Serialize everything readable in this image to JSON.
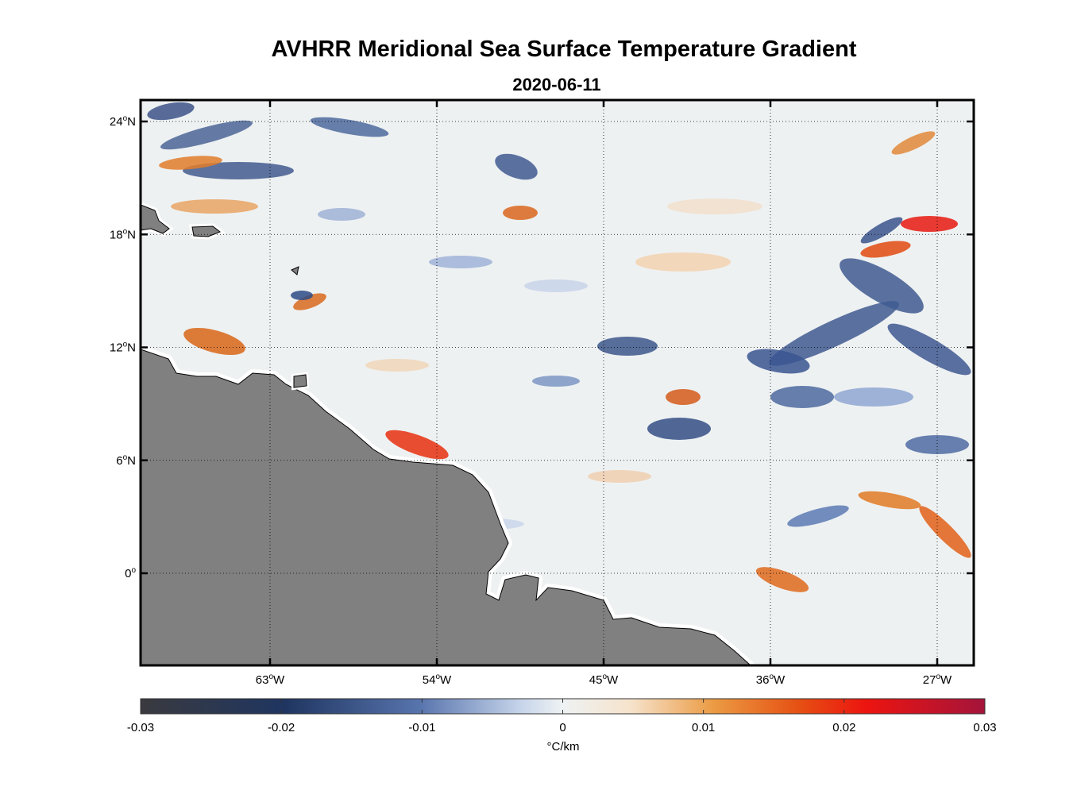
{
  "figure": {
    "title": "AVHRR Meridional Sea Surface Temperature Gradient",
    "date": "2020-06-11"
  },
  "map": {
    "lat_ticks": [
      {
        "text": "24",
        "suffix": "N",
        "lat": 24
      },
      {
        "text": "18",
        "suffix": "N",
        "lat": 18
      },
      {
        "text": "12",
        "suffix": "N",
        "lat": 12
      },
      {
        "text": "6",
        "suffix": "N",
        "lat": 6
      },
      {
        "text": "0",
        "suffix": "",
        "lat": 0
      }
    ],
    "lon_ticks": [
      {
        "text": "63",
        "suffix": "W",
        "lon": -63
      },
      {
        "text": "54",
        "suffix": "W",
        "lon": -54
      },
      {
        "text": "45",
        "suffix": "W",
        "lon": -45
      },
      {
        "text": "36",
        "suffix": "W",
        "lon": -36
      },
      {
        "text": "27",
        "suffix": "W",
        "lon": -27
      }
    ],
    "land_color": "#808080",
    "grid_style": "dotted",
    "grid": true
  },
  "colorbar": {
    "ticks": [
      "-0.03",
      "-0.02",
      "-0.01",
      "0",
      "0.01",
      "0.02",
      "0.03"
    ],
    "unit": "°C/km",
    "range": [
      -0.03,
      0.03
    ],
    "colors": [
      "#3a3a3f",
      "#1f3560",
      "#5774ad",
      "#eef2f3",
      "#f0a85a",
      "#e0520f",
      "#ec1410",
      "#a4143b"
    ]
  }
}
